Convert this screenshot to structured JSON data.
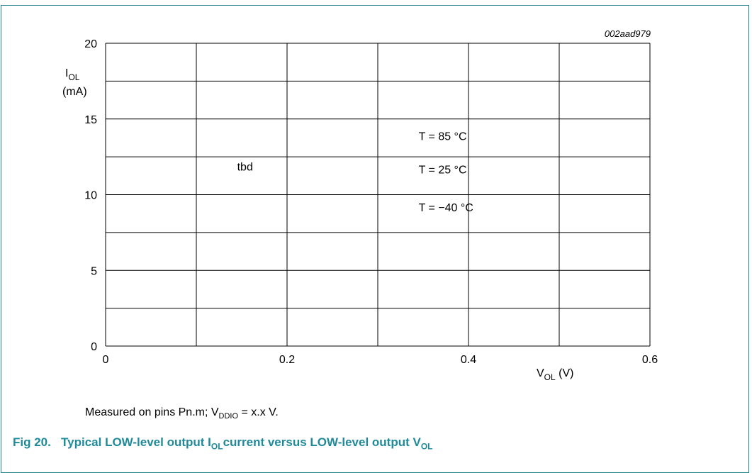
{
  "figure": {
    "id_code": "002aad979",
    "note_text": "Measured on pins Pn.m; V",
    "note_sub": "DDIO",
    "note_rest": " = x.x V.",
    "caption_prefix": "Fig 20.",
    "caption_text": "Typical LOW-level output I",
    "caption_sub1": "OL",
    "caption_mid": "current versus LOW-level output V",
    "caption_sub2": "OL"
  },
  "chart_data": {
    "type": "line",
    "xlim": [
      0,
      0.6
    ],
    "ylim": [
      0,
      20
    ],
    "x_ticks": [
      0,
      0.2,
      0.4,
      0.6
    ],
    "x_tick_labels": [
      "0",
      "0.2",
      "0.4",
      "0.6"
    ],
    "x_minor_grid": [
      0.1,
      0.3,
      0.5
    ],
    "y_ticks": [
      0,
      5,
      10,
      15,
      20
    ],
    "y_tick_labels": [
      "0",
      "5",
      "10",
      "15",
      "20"
    ],
    "y_minor_grid": [
      2.5,
      7.5,
      12.5,
      17.5
    ],
    "grid": true,
    "xlabel": "V",
    "xlabel_sub": "OL",
    "xlabel_unit": " (V)",
    "ylabel": "I",
    "ylabel_sub": "OL",
    "ylabel_unit": "(mA)",
    "series": [],
    "annotations": [
      {
        "text": "tbd",
        "x": 0.145,
        "y": 11.6
      },
      {
        "text": "T = 85 °C",
        "x": 0.345,
        "y": 13.6
      },
      {
        "text": "T = 25 °C",
        "x": 0.345,
        "y": 11.4
      },
      {
        "text": "T = −40 °C",
        "x": 0.345,
        "y": 8.9
      }
    ]
  }
}
